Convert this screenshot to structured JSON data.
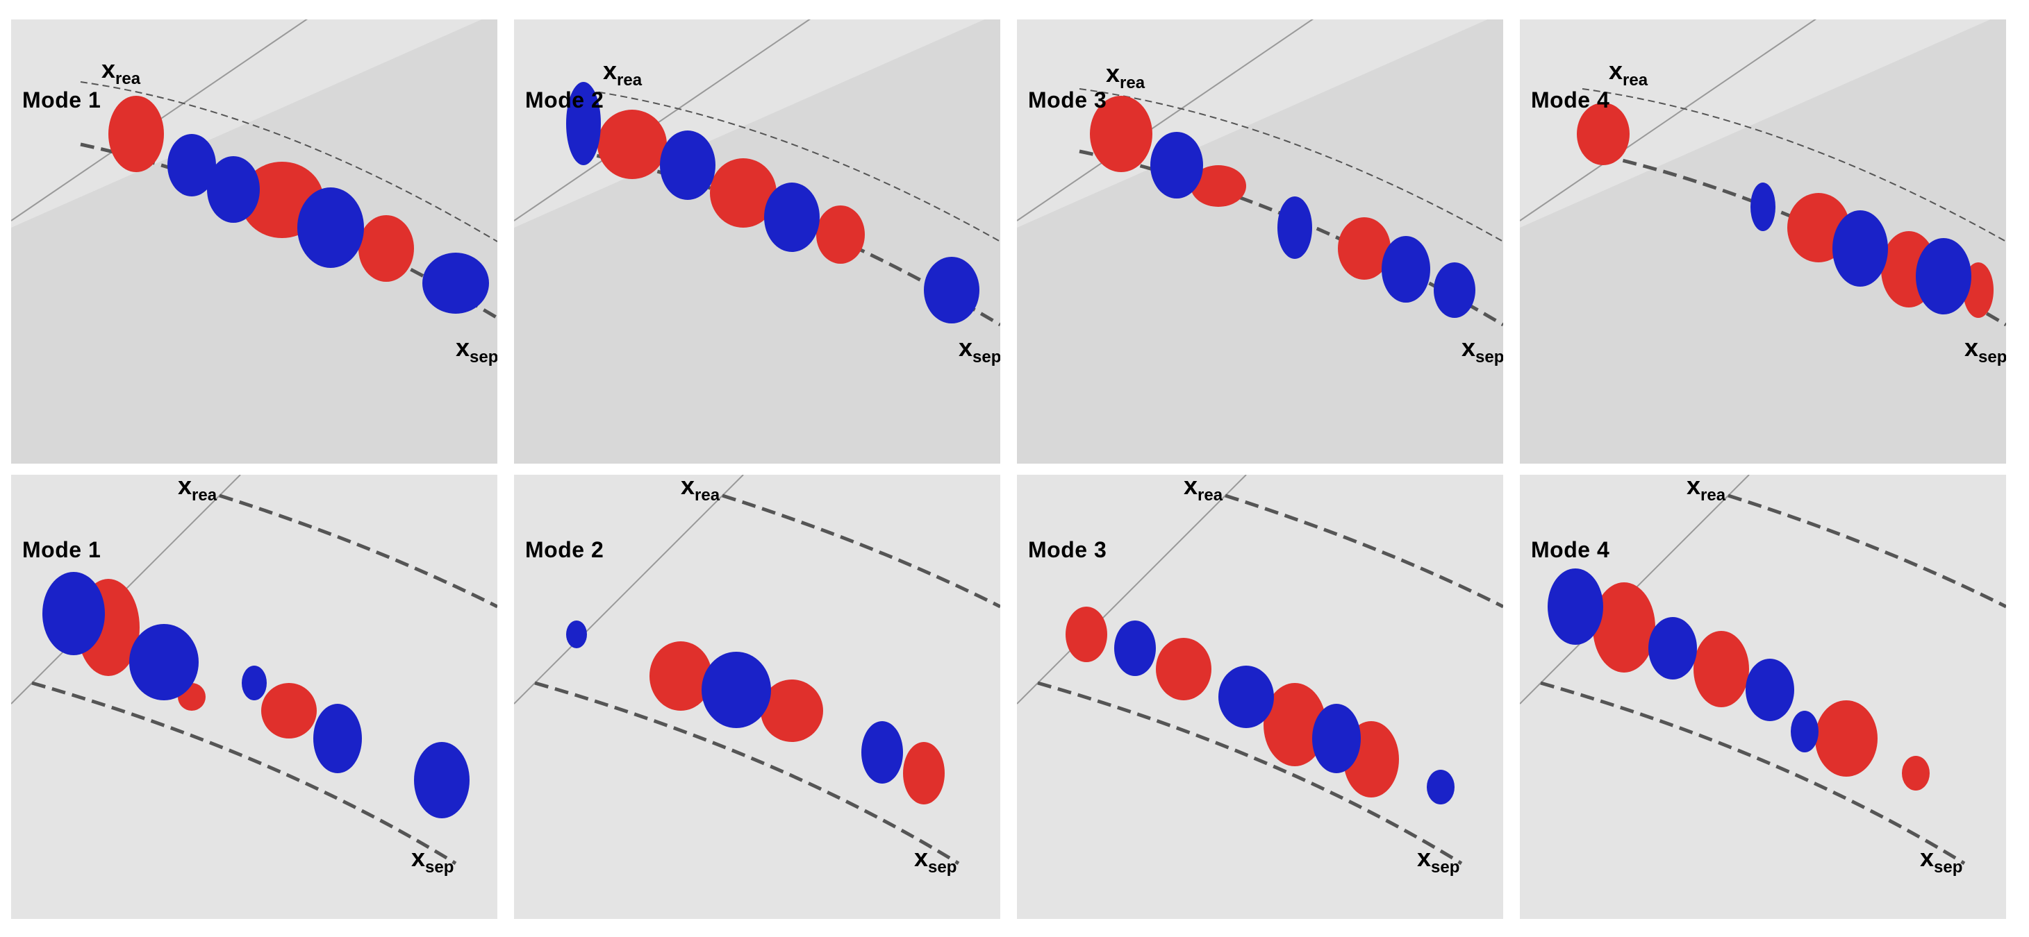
{
  "colors": {
    "background": "#e4e4e4",
    "positive": "#e0302c",
    "negative": "#1a22c8",
    "outline": "#333333"
  },
  "rows": [
    {
      "panels": [
        {
          "mode": "Mode 1",
          "xrea": "x",
          "xrea_sub": "rea",
          "xsep": "x",
          "xsep_sub": "sep"
        },
        {
          "mode": "Mode 2",
          "xrea": "x",
          "xrea_sub": "rea",
          "xsep": "x",
          "xsep_sub": "sep"
        },
        {
          "mode": "Mode 3",
          "xrea": "x",
          "xrea_sub": "rea",
          "xsep": "x",
          "xsep_sub": "sep"
        },
        {
          "mode": "Mode 4",
          "xrea": "x",
          "xrea_sub": "rea",
          "xsep": "x",
          "xsep_sub": "sep"
        }
      ]
    },
    {
      "panels": [
        {
          "mode": "Mode 1",
          "xrea": "x",
          "xrea_sub": "rea",
          "xsep": "x",
          "xsep_sub": "sep"
        },
        {
          "mode": "Mode 2",
          "xrea": "x",
          "xrea_sub": "rea",
          "xsep": "x",
          "xsep_sub": "sep"
        },
        {
          "mode": "Mode 3",
          "xrea": "x",
          "xrea_sub": "rea",
          "xsep": "x",
          "xsep_sub": "sep"
        },
        {
          "mode": "Mode 4",
          "xrea": "x",
          "xrea_sub": "rea",
          "xsep": "x",
          "xsep_sub": "sep"
        }
      ]
    }
  ]
}
